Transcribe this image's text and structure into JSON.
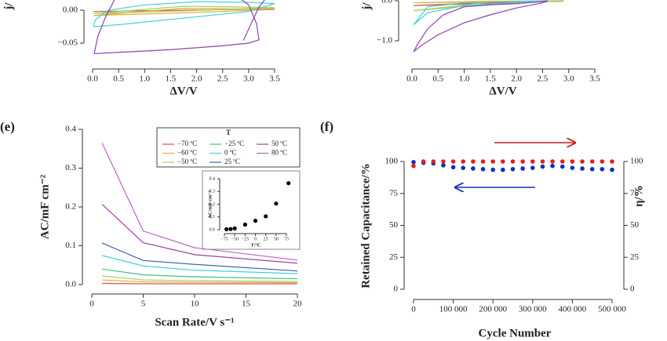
{
  "chart_data": [
    {
      "type": "line",
      "ylabel": "j/",
      "xlabel": "ΔV/V",
      "xlim": [
        0,
        3.5
      ],
      "ylim": [
        -0.0738,
        0.0274
      ],
      "xticks": [
        {
          "value": 0,
          "label": "0.0"
        },
        0.5,
        {
          "value": 1,
          "label": "1.0"
        },
        1.5,
        {
          "value": 2,
          "label": "2.0"
        },
        2.5,
        {
          "value": 3,
          "label": "3.0"
        },
        3.5
      ],
      "yticks": [
        {
          "value": -0.05,
          "label": "−0.05"
        },
        {
          "value": 0,
          "label": "0.00"
        }
      ],
      "series": [
        {
          "color": "#d9534f",
          "x": [
            0.02,
            1.75,
            3.5
          ],
          "values": [
            -0.002,
            0.0,
            0.002
          ]
        },
        {
          "color": "#e0b040",
          "x": [
            0.02,
            1.75,
            3.5,
            1.75,
            0.02
          ],
          "values": [
            -0.008,
            -0.004,
            0.001,
            0.003,
            -0.008
          ]
        },
        {
          "color": "#a8d060",
          "x": [
            0.02,
            1.75,
            3.5,
            1.75,
            0.02
          ],
          "values": [
            -0.005,
            -0.001,
            0.004,
            0.006,
            -0.005
          ]
        },
        {
          "color": "#40d0e0",
          "x": [
            0.02,
            0.5,
            1.0,
            2.0,
            3.0,
            3.5,
            3.0,
            2.0,
            1.0,
            0.3,
            0.05,
            0.02
          ],
          "values": [
            -0.025,
            -0.022,
            -0.018,
            -0.01,
            -0.002,
            0.01,
            0.012,
            0.013,
            0.008,
            0.0,
            -0.015,
            -0.025
          ]
        },
        {
          "color": "#9040b0",
          "x": [
            0.03,
            0.1,
            0.25,
            0.45,
            2.8,
            3.0,
            3.15,
            3.2,
            3.0,
            2.5,
            2.0,
            1.5,
            1.0,
            0.5,
            0.03
          ],
          "values": [
            -0.066,
            -0.04,
            -0.01,
            0.02,
            0.02,
            0.008,
            -0.02,
            -0.045,
            -0.05,
            -0.054,
            -0.057,
            -0.06,
            -0.062,
            -0.064,
            -0.066
          ]
        },
        {
          "color": "#9040b0",
          "x": [
            2.9,
            3.05,
            3.2,
            3.35
          ],
          "values": [
            -0.046,
            -0.02,
            0.005,
            0.02
          ]
        }
      ]
    },
    {
      "type": "line",
      "ylabel": "j/",
      "xlabel": "ΔV/V",
      "xlim": [
        0,
        3.5
      ],
      "ylim": [
        -1.45,
        0.216
      ],
      "xticks": [
        {
          "value": 0,
          "label": "0.0"
        },
        0.5,
        {
          "value": 1,
          "label": "1.0"
        },
        1.5,
        {
          "value": 2,
          "label": "2.0"
        },
        2.5,
        {
          "value": 3,
          "label": "3.0"
        },
        3.5
      ],
      "yticks": [
        {
          "value": -1,
          "label": "−1.0"
        },
        {
          "value": 0,
          "label": "0.0"
        }
      ],
      "series": [
        {
          "color": "#d9534f",
          "x": [
            0.03,
            1.5,
            2.9,
            1.5,
            0.03
          ],
          "values": [
            -0.12,
            -0.06,
            -0.01,
            -0.04,
            -0.12
          ]
        },
        {
          "color": "#e0b040",
          "x": [
            0.03,
            1.5,
            2.9,
            1.5,
            0.03
          ],
          "values": [
            -0.05,
            -0.03,
            0.0,
            -0.01,
            -0.05
          ]
        },
        {
          "color": "#a8d060",
          "x": [
            0.03,
            1.5,
            2.9,
            1.5,
            0.03
          ],
          "values": [
            -0.25,
            -0.08,
            0.0,
            -0.03,
            -0.25
          ]
        },
        {
          "color": "#40d0e0",
          "x": [
            0.03,
            0.3,
            1.0,
            2.0,
            2.6,
            2.0,
            1.0,
            0.3,
            0.03
          ],
          "values": [
            -0.6,
            -0.3,
            -0.12,
            -0.05,
            0.0,
            -0.02,
            -0.05,
            -0.15,
            -0.6
          ]
        },
        {
          "color": "#9040b0",
          "x": [
            0.03,
            0.1,
            0.3,
            0.6,
            1.0,
            1.5,
            2.0,
            2.4,
            2.6,
            2.5,
            2.0,
            1.5,
            1.0,
            0.5,
            0.2,
            0.05,
            0.03
          ],
          "values": [
            -1.28,
            -1.1,
            -0.7,
            -0.35,
            -0.15,
            -0.1,
            -0.07,
            -0.03,
            0.0,
            -0.05,
            -0.18,
            -0.35,
            -0.55,
            -0.85,
            -1.1,
            -1.25,
            -1.28
          ]
        }
      ]
    },
    {
      "type": "line",
      "panel": "(e)",
      "xlabel": "Scan Rate/V s⁻¹",
      "ylabel": "AC/mF cm⁻²",
      "legend_title": "T",
      "xlim": [
        0,
        20
      ],
      "ylim": [
        0,
        0.4
      ],
      "xticks": [
        0,
        5,
        10,
        15,
        20
      ],
      "yticks": [
        {
          "value": 0,
          "label": "0.0"
        },
        0.1,
        0.2,
        0.3,
        0.4
      ],
      "x": [
        1,
        5,
        10,
        20
      ],
      "series": [
        {
          "name": "−70 ºC",
          "color": "#d9534f",
          "values": [
            0.003,
            0.002,
            0.002,
            0.002
          ]
        },
        {
          "name": "−60 ºC",
          "color": "#e0b040",
          "values": [
            0.012,
            0.007,
            0.006,
            0.005
          ]
        },
        {
          "name": "−50 ºC",
          "color": "#a8d060",
          "values": [
            0.022,
            0.012,
            0.01,
            0.008
          ]
        },
        {
          "name": "−25 ºC",
          "color": "#40c080",
          "values": [
            0.04,
            0.025,
            0.02,
            0.015
          ]
        },
        {
          "name": "0 ºC",
          "color": "#40d0e0",
          "values": [
            0.075,
            0.048,
            0.037,
            0.028
          ]
        },
        {
          "name": "25 ºC",
          "color": "#4060b0",
          "values": [
            0.107,
            0.062,
            0.052,
            0.035
          ]
        },
        {
          "name": "50 ºC",
          "color": "#a040a8",
          "values": [
            0.207,
            0.108,
            0.077,
            0.055
          ]
        },
        {
          "name": "80 ºC",
          "color": "#c060d0",
          "values": [
            0.365,
            0.138,
            0.095,
            0.063
          ]
        }
      ]
    },
    {
      "type": "scatter",
      "xlabel": "T/ºC",
      "ylabel": "AC/mF cm⁻²",
      "xlim": [
        -75,
        75
      ],
      "ylim": [
        0,
        0.4
      ],
      "xticks": [
        {
          "value": -75,
          "label": "−75"
        },
        {
          "value": -50,
          "label": "−50"
        },
        {
          "value": -25,
          "label": "−25"
        },
        0,
        25,
        50,
        75
      ],
      "yticks": [
        {
          "value": 0,
          "label": "0.0"
        },
        0.1,
        0.2,
        0.3,
        0.4
      ],
      "series": [
        {
          "color": "#000000",
          "x": [
            -70,
            -60,
            -50,
            -25,
            0,
            25,
            50,
            80
          ],
          "values": [
            0.003,
            0.005,
            0.01,
            0.04,
            0.07,
            0.105,
            0.205,
            0.365
          ]
        }
      ]
    },
    {
      "type": "scatter",
      "panel": "(f)",
      "xlabel": "Cycle Number",
      "ylabel": "Retained Capacitance/%",
      "y2label": "η/%",
      "xlim": [
        0,
        500000
      ],
      "ylim": [
        0,
        100
      ],
      "y2lim": [
        0,
        100
      ],
      "xticks": [
        0,
        {
          "value": 100000,
          "label": "100 000"
        },
        {
          "value": 200000,
          "label": "200 000"
        },
        {
          "value": 300000,
          "label": "300 000"
        },
        {
          "value": 400000,
          "label": "400 000"
        },
        {
          "value": 500000,
          "label": "500 000"
        }
      ],
      "yticks": [
        0,
        25,
        50,
        75,
        100
      ],
      "y2ticks": [
        0,
        25,
        50,
        75,
        100
      ],
      "x": [
        0,
        25000,
        50000,
        75000,
        100000,
        125000,
        150000,
        175000,
        200000,
        225000,
        250000,
        275000,
        300000,
        325000,
        350000,
        375000,
        400000,
        425000,
        450000,
        475000,
        500000
      ],
      "series": [
        {
          "color": "#1030c0",
          "values": [
            99.5,
            99,
            98.5,
            97,
            95.5,
            95,
            94.5,
            94,
            93.5,
            93.5,
            94,
            94.5,
            95,
            96,
            96.5,
            96,
            95,
            94.5,
            94,
            94,
            93.5
          ]
        },
        {
          "color": "#e02020",
          "axis": "y2",
          "values": [
            96.5,
            100,
            100,
            100,
            100,
            100,
            100,
            100,
            100,
            100,
            100,
            100,
            100,
            100,
            100,
            100,
            100,
            100,
            100,
            100,
            100
          ]
        }
      ]
    }
  ]
}
